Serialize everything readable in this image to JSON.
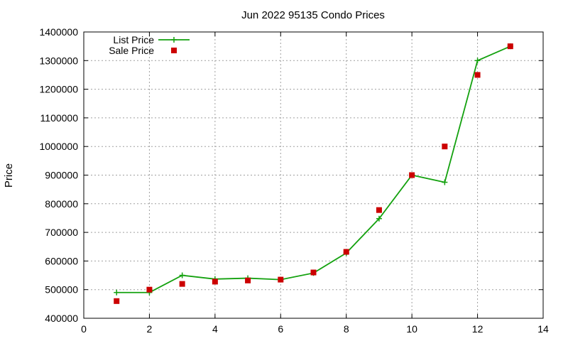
{
  "chart_data": {
    "type": "line",
    "title": "Jun 2022 95135 Condo Prices",
    "xlabel": "",
    "ylabel": "Price",
    "xlim": [
      0,
      14
    ],
    "ylim": [
      400000,
      1400000
    ],
    "x_ticks": [
      0,
      2,
      4,
      6,
      8,
      10,
      12,
      14
    ],
    "y_ticks": [
      400000,
      500000,
      600000,
      700000,
      800000,
      900000,
      1000000,
      1100000,
      1200000,
      1300000,
      1400000
    ],
    "grid": true,
    "legend_position": "top-left",
    "series": [
      {
        "name": "List Price",
        "style": "line-with-plus-markers",
        "color": "#13a10e",
        "x": [
          1,
          2,
          3,
          4,
          5,
          6,
          7,
          8,
          9,
          10,
          11,
          12,
          13
        ],
        "y": [
          490000,
          490000,
          550000,
          537000,
          540000,
          535000,
          558000,
          628000,
          748000,
          900000,
          875000,
          1300000,
          1350000
        ]
      },
      {
        "name": "Sale Price",
        "style": "square-markers",
        "color": "#cc0000",
        "x": [
          1,
          2,
          3,
          4,
          5,
          6,
          7,
          8,
          9,
          10,
          11,
          12,
          13
        ],
        "y": [
          460000,
          500000,
          520000,
          528000,
          532000,
          535000,
          560000,
          632000,
          778000,
          900000,
          1000000,
          1250000,
          1350000
        ]
      }
    ]
  }
}
